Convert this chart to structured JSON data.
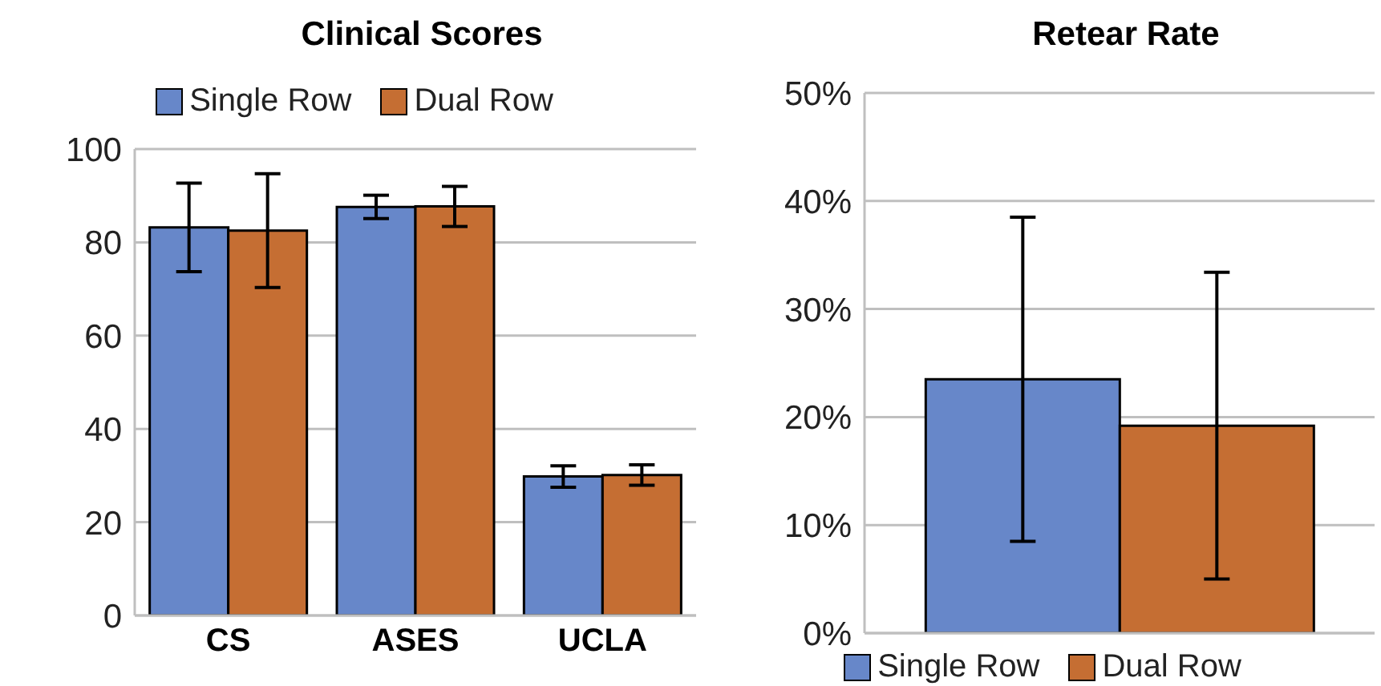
{
  "chart_data": [
    {
      "type": "bar",
      "title": "Clinical Scores",
      "categories": [
        "CS",
        "ASES",
        "UCLA"
      ],
      "series": [
        {
          "name": "Single Row",
          "color": "#6787c9",
          "values": [
            83.2,
            87.6,
            29.8
          ],
          "errors": [
            9.5,
            2.5,
            2.3
          ]
        },
        {
          "name": "Dual Row",
          "color": "#c56e33",
          "values": [
            82.5,
            87.7,
            30.1
          ],
          "errors": [
            12.2,
            4.3,
            2.2
          ]
        }
      ],
      "ylim": [
        0,
        100
      ],
      "yticks": [
        0,
        20,
        40,
        60,
        80,
        100
      ],
      "grid": "y",
      "legend": "top"
    },
    {
      "type": "bar",
      "title": "Retear Rate",
      "categories": [
        null
      ],
      "series": [
        {
          "name": "Single Row",
          "color": "#6787c9",
          "values": [
            23.5
          ],
          "errors": [
            15
          ]
        },
        {
          "name": "Dual Row",
          "color": "#c56e33",
          "values": [
            19.2
          ],
          "errors": [
            14.2
          ]
        }
      ],
      "ylim": [
        0,
        50
      ],
      "yticks": [
        {
          "value": 0,
          "label": "0%"
        },
        {
          "value": 10,
          "label": "10%"
        },
        {
          "value": 20,
          "label": "20%"
        },
        {
          "value": 30,
          "label": "30%"
        },
        {
          "value": 40,
          "label": "40%"
        },
        {
          "value": 50,
          "label": "50%"
        }
      ],
      "grid": "y",
      "legend": "bottom"
    }
  ]
}
